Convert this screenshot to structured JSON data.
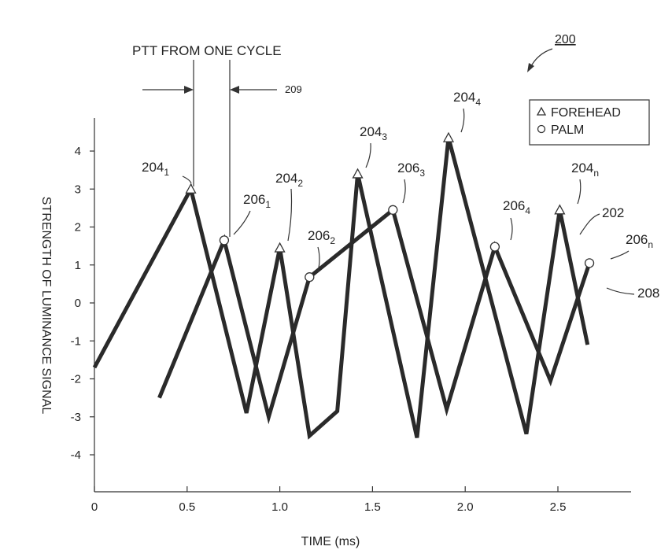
{
  "figure_number": "200",
  "annotation_top": "PTT FROM ONE CYCLE",
  "annotation_209": "209",
  "chart_data": {
    "type": "line",
    "xlabel": "TIME (ms)",
    "ylabel": "STRENGTH OF LUMINANCE SIGNAL",
    "xlim": [
      0,
      2.8
    ],
    "ylim": [
      -5,
      5
    ],
    "xticks": [
      0,
      0.5,
      1.0,
      1.5,
      2.0,
      2.5
    ],
    "xtick_labels": [
      "0",
      "0.5",
      "1.0",
      "1.5",
      "2.0",
      "2.5"
    ],
    "yticks": [
      4,
      3,
      2,
      1,
      0,
      -1,
      -2,
      -3,
      -4
    ],
    "ytick_labels": [
      "4",
      "3",
      "2",
      "1",
      "0",
      "-1",
      "-2",
      "-3",
      "-4"
    ],
    "legend": {
      "placement": "top-right",
      "entries": [
        {
          "label": "FOREHEAD",
          "marker": "triangle"
        },
        {
          "label": "PALM",
          "marker": "circle"
        }
      ]
    },
    "series": [
      {
        "name": "FOREHEAD",
        "marker": "triangle",
        "x": [
          0.0,
          0.52,
          0.82,
          1.0,
          1.16,
          1.31,
          1.42,
          1.74,
          1.91,
          2.33,
          2.51,
          2.66
        ],
        "y": [
          -1.7,
          3.0,
          -2.9,
          1.45,
          -3.5,
          -2.85,
          3.4,
          -3.55,
          4.35,
          -3.45,
          2.45,
          -1.1
        ],
        "peak_indices": [
          1,
          3,
          6,
          8,
          10
        ],
        "peak_labels": [
          {
            "main": "204",
            "sub": "1"
          },
          {
            "main": "204",
            "sub": "2"
          },
          {
            "main": "204",
            "sub": "3"
          },
          {
            "main": "204",
            "sub": "4"
          },
          {
            "main": "204",
            "sub": "n"
          }
        ],
        "callout": "202"
      },
      {
        "name": "PALM",
        "marker": "circle",
        "x": [
          0.35,
          0.7,
          0.94,
          1.16,
          1.61,
          1.9,
          2.16,
          2.46,
          2.67
        ],
        "y": [
          -2.5,
          1.65,
          -3.0,
          0.68,
          2.45,
          -2.8,
          1.48,
          -2.05,
          1.05
        ],
        "peak_indices": [
          1,
          3,
          4,
          6,
          8
        ],
        "peak_labels": [
          {
            "main": "206",
            "sub": "1"
          },
          {
            "main": "206",
            "sub": "2"
          },
          {
            "main": "206",
            "sub": "3"
          },
          {
            "main": "206",
            "sub": "4"
          },
          {
            "main": "206",
            "sub": "n"
          }
        ],
        "callout": "208"
      }
    ]
  }
}
